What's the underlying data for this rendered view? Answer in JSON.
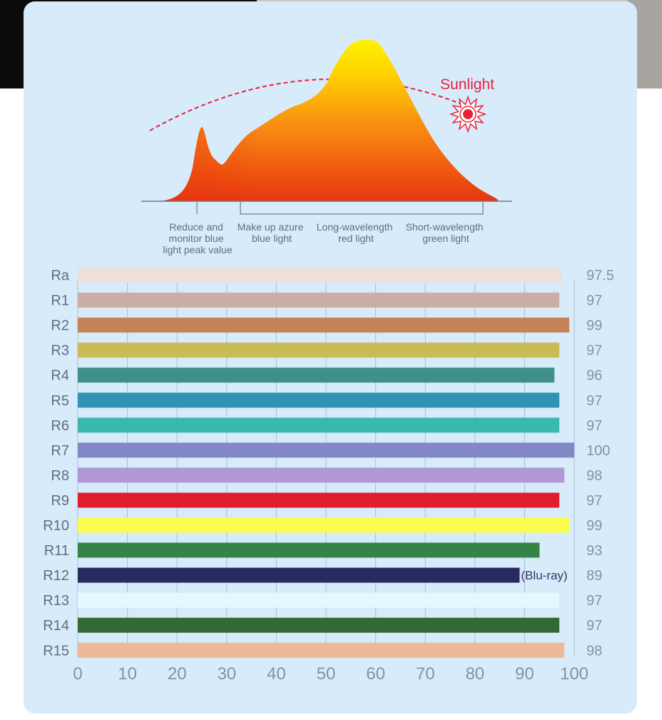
{
  "colors": {
    "panel_bg": "#d8ebfb",
    "label_text": "#5e6e7d",
    "axis_text": "#7e95a6",
    "sunlight_red": "#e8213a",
    "peak_yellow": "#fff200",
    "base_orange": "#e8350f"
  },
  "spectrum": {
    "sunlight_label": "Sunlight",
    "annotations": [
      {
        "lines": [
          "Reduce and",
          "monitor blue",
          "light peak value"
        ]
      },
      {
        "lines": [
          "Make up azure",
          "blue light"
        ]
      },
      {
        "lines": [
          "Long-wavelength",
          "red light"
        ]
      },
      {
        "lines": [
          "Short-wavelength",
          "green light"
        ]
      }
    ]
  },
  "chart_data": {
    "type": "bar",
    "orientation": "horizontal",
    "categories": [
      "Ra",
      "R1",
      "R2",
      "R3",
      "R4",
      "R5",
      "R6",
      "R7",
      "R8",
      "R9",
      "R10",
      "R11",
      "R12",
      "R13",
      "R14",
      "R15"
    ],
    "values": [
      97.5,
      97,
      99,
      97,
      96,
      97,
      97,
      100,
      98,
      97,
      99,
      93,
      89,
      97,
      97,
      98
    ],
    "value_labels": [
      "97.5",
      "97",
      "99",
      "97",
      "96",
      "97",
      "97",
      "100",
      "98",
      "97",
      "99",
      "93",
      "89",
      "97",
      "97",
      "98"
    ],
    "bar_colors": [
      "#ede0d9",
      "#cbada3",
      "#c48358",
      "#c9bb55",
      "#408f88",
      "#3093b4",
      "#3ab9b1",
      "#8287c6",
      "#b198d4",
      "#dc1e2d",
      "#fbfd4e",
      "#358446",
      "#272a60",
      "#e4f9fd",
      "#346937",
      "#edb998"
    ],
    "annotations": [
      {
        "category": "R12",
        "text": "(Blu-ray)"
      }
    ],
    "xticks": [
      "0",
      "10",
      "20",
      "30",
      "40",
      "50",
      "60",
      "70",
      "80",
      "90",
      "100"
    ],
    "xlim": [
      0,
      100
    ],
    "grid": "vertical"
  }
}
